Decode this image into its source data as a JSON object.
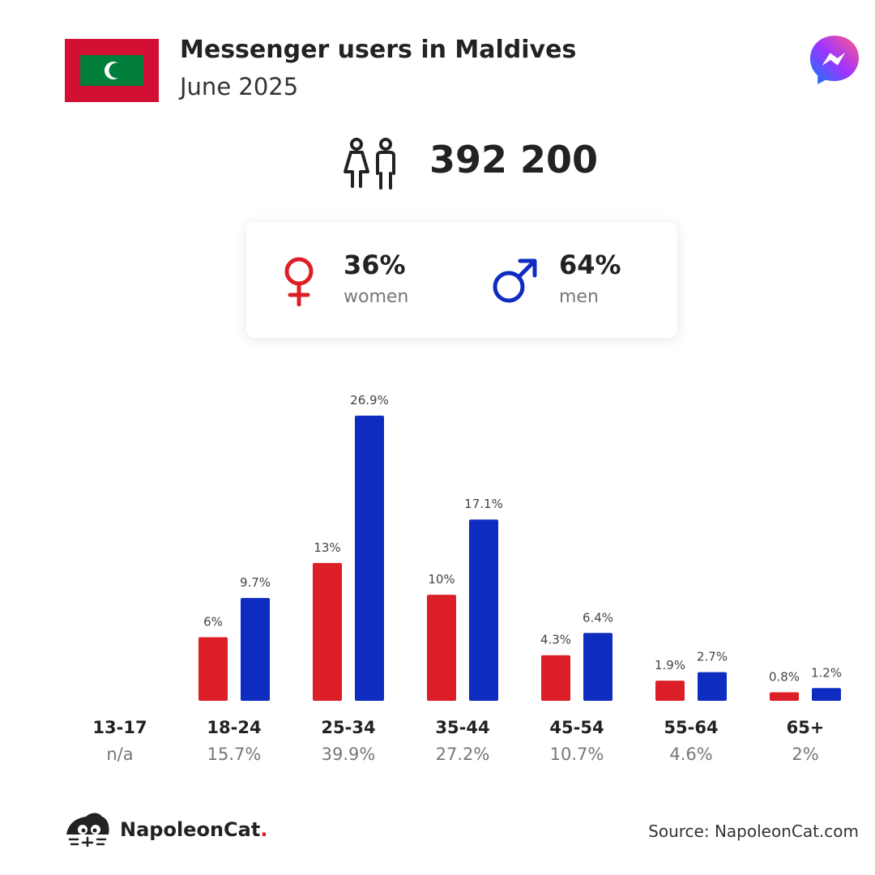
{
  "header": {
    "title": "Messenger users in Maldives",
    "subtitle": "June 2025"
  },
  "total_users": "392 200",
  "gender": {
    "women": {
      "pct": "36%",
      "label": "women"
    },
    "men": {
      "pct": "64%",
      "label": "men"
    }
  },
  "colors": {
    "women": "#dc1f26",
    "men": "#0f2cc1",
    "flag_red": "#d21034",
    "flag_green": "#007e3a"
  },
  "chart_data": {
    "type": "bar",
    "categories": [
      "13-17",
      "18-24",
      "25-34",
      "35-44",
      "45-54",
      "55-64",
      "65+"
    ],
    "category_totals": [
      "n/a",
      "15.7%",
      "39.9%",
      "27.2%",
      "10.7%",
      "4.6%",
      "2%"
    ],
    "series": [
      {
        "name": "women",
        "values": [
          null,
          6,
          13,
          10,
          4.3,
          1.9,
          0.8
        ],
        "labels": [
          "",
          "6%",
          "13%",
          "10%",
          "4.3%",
          "1.9%",
          "0.8%"
        ]
      },
      {
        "name": "men",
        "values": [
          null,
          9.7,
          26.9,
          17.1,
          6.4,
          2.7,
          1.2
        ],
        "labels": [
          "",
          "9.7%",
          "26.9%",
          "17.1%",
          "6.4%",
          "2.7%",
          "1.2%"
        ]
      }
    ],
    "ylim": [
      0,
      26.9
    ],
    "grid": false
  },
  "footer": {
    "brand": "NapoleonCat",
    "brand_dot": ".",
    "source": "Source: NapoleonCat.com"
  }
}
